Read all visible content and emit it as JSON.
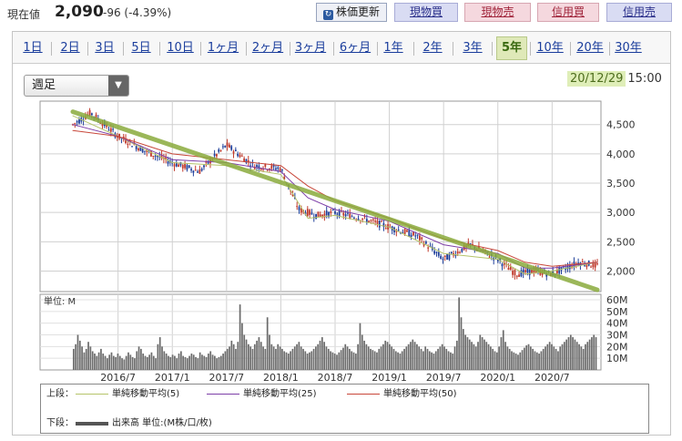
{
  "quote": {
    "label": "現在値",
    "value": "2,090",
    "change": "-96 (-4.39%)"
  },
  "buttons": {
    "refresh": "株価更新",
    "genbutsu_buy": "現物買",
    "genbutsu_sell": "現物売",
    "shinyo_buy": "信用買",
    "shinyo_sell": "信用売"
  },
  "tabs": [
    "1日",
    "2日",
    "3日",
    "5日",
    "10日",
    "1ヶ月",
    "2ヶ月",
    "3ヶ月",
    "6ヶ月",
    "1年",
    "2年",
    "3年",
    "5年",
    "10年",
    "20年",
    "30年"
  ],
  "active_tab": "5年",
  "period_select": "週足",
  "timestamp": {
    "date": "20/12/29",
    "time": "15:00"
  },
  "colors": {
    "accent_green": "#8aaa3c",
    "candle": "#1f3f9a",
    "volume": "#6b6b6b"
  },
  "chart_data": [
    {
      "type": "line",
      "title": "",
      "y_ticks": [
        "4,500",
        "4,000",
        "3,500",
        "3,000",
        "2,500",
        "2,000"
      ],
      "x_ticks": [
        "2016/7",
        "2017/1",
        "2017/7",
        "2018/1",
        "2018/7",
        "2019/1",
        "2019/7",
        "2020/1",
        "2020/7"
      ],
      "ylim": [
        1650,
        4900
      ],
      "grid": true,
      "series": [
        {
          "name": "単純移動平均(5)",
          "color": "#b5c46a",
          "x": [
            "2016/2",
            "2016/7",
            "2017/1",
            "2017/7",
            "2018/1",
            "2018/4",
            "2018/7",
            "2019/1",
            "2019/7",
            "2020/1",
            "2020/4",
            "2020/7",
            "2020/12"
          ],
          "values": [
            4650,
            4300,
            3850,
            3800,
            3650,
            2900,
            2950,
            2750,
            2300,
            2200,
            1950,
            2000,
            2150
          ]
        },
        {
          "name": "単純移動平均(25)",
          "color": "#7d3fa8",
          "x": [
            "2016/2",
            "2016/7",
            "2017/1",
            "2017/7",
            "2018/1",
            "2018/4",
            "2018/7",
            "2019/1",
            "2019/7",
            "2020/1",
            "2020/4",
            "2020/7",
            "2020/12"
          ],
          "values": [
            4500,
            4300,
            3900,
            3850,
            3700,
            3250,
            3050,
            2850,
            2450,
            2300,
            2050,
            2050,
            2150
          ]
        },
        {
          "name": "単純移動平均(50)",
          "color": "#c8473a",
          "x": [
            "2016/2",
            "2016/7",
            "2017/1",
            "2017/7",
            "2018/1",
            "2018/4",
            "2018/7",
            "2019/1",
            "2019/7",
            "2020/1",
            "2020/4",
            "2020/7",
            "2020/12"
          ],
          "values": [
            4400,
            4300,
            4000,
            3900,
            3800,
            3450,
            3200,
            2900,
            2550,
            2350,
            2150,
            2080,
            2150
          ]
        },
        {
          "name": "trendline",
          "color": "#8aaa3c",
          "x": [
            "2016/2",
            "2020/12"
          ],
          "values": [
            4720,
            1680
          ]
        }
      ],
      "price_path": {
        "x": [
          "2016/2",
          "2016/4",
          "2016/7",
          "2016/10",
          "2017/1",
          "2017/4",
          "2017/7",
          "2017/10",
          "2018/1",
          "2018/3",
          "2018/5",
          "2018/7",
          "2018/10",
          "2019/1",
          "2019/4",
          "2019/7",
          "2019/10",
          "2020/1",
          "2020/3",
          "2020/5",
          "2020/7",
          "2020/10",
          "2020/12"
        ],
        "values": [
          4500,
          4700,
          4300,
          4050,
          3850,
          3700,
          4150,
          3800,
          3750,
          3050,
          2950,
          3000,
          2900,
          2750,
          2600,
          2200,
          2450,
          2200,
          1950,
          2000,
          1950,
          2150,
          2090
        ]
      }
    },
    {
      "type": "bar",
      "title": "",
      "unit_label": "単位: M",
      "y_ticks": [
        "60M",
        "50M",
        "40M",
        "30M",
        "20M",
        "10M"
      ],
      "ylim": [
        0,
        60
      ],
      "values_note": "weekly volume (M), approx. 250 bars",
      "values": [
        18,
        22,
        30,
        25,
        20,
        15,
        18,
        24,
        20,
        16,
        14,
        12,
        15,
        18,
        14,
        12,
        10,
        13,
        15,
        12,
        11,
        14,
        12,
        10,
        9,
        12,
        15,
        13,
        11,
        10,
        16,
        20,
        18,
        14,
        12,
        11,
        13,
        15,
        12,
        10,
        22,
        28,
        20,
        16,
        14,
        12,
        11,
        13,
        12,
        10,
        14,
        16,
        12,
        11,
        10,
        12,
        14,
        13,
        11,
        10,
        15,
        13,
        12,
        11,
        14,
        16,
        13,
        12,
        10,
        11,
        12,
        14,
        16,
        18,
        20,
        25,
        22,
        18,
        24,
        56,
        40,
        30,
        26,
        22,
        20,
        18,
        22,
        25,
        28,
        24,
        20,
        18,
        45,
        30,
        22,
        20,
        18,
        22,
        20,
        18,
        16,
        15,
        14,
        16,
        18,
        20,
        22,
        24,
        20,
        18,
        16,
        14,
        15,
        16,
        18,
        20,
        22,
        25,
        28,
        24,
        20,
        18,
        16,
        15,
        14,
        13,
        15,
        17,
        19,
        22,
        20,
        18,
        16,
        15,
        14,
        22,
        40,
        30,
        25,
        22,
        20,
        18,
        17,
        16,
        15,
        18,
        20,
        22,
        25,
        24,
        22,
        20,
        18,
        16,
        15,
        14,
        16,
        18,
        20,
        22,
        24,
        26,
        24,
        22,
        20,
        18,
        16,
        20,
        18,
        16,
        15,
        14,
        16,
        18,
        20,
        22,
        20,
        18,
        16,
        15,
        14,
        20,
        25,
        62,
        45,
        35,
        30,
        28,
        26,
        24,
        22,
        20,
        24,
        30,
        28,
        26,
        24,
        22,
        20,
        18,
        16,
        15,
        20,
        28,
        34,
        24,
        20,
        18,
        16,
        15,
        14,
        13,
        15,
        17,
        19,
        21,
        22,
        20,
        18,
        16,
        15,
        14,
        16,
        18,
        20,
        22,
        24,
        22,
        20,
        18,
        16,
        20,
        22,
        24,
        26,
        28,
        30,
        28,
        26,
        24,
        22,
        20,
        18,
        22,
        24,
        26,
        28,
        30,
        28
      ]
    }
  ],
  "legend": {
    "upper_label": "上段：",
    "lower_label": "下段：",
    "ma5": "単純移動平均(5)",
    "ma25": "単純移動平均(25)",
    "ma50": "単純移動平均(50)",
    "volume": "出来高 単位:(M株/口/枚)"
  }
}
